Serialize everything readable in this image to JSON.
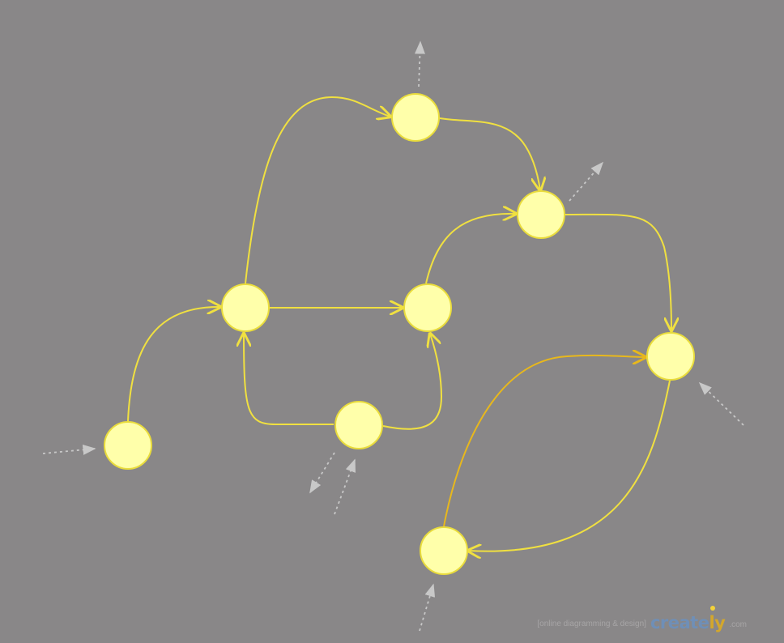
{
  "diagram": {
    "type": "state-transition-graph",
    "node_count": 9,
    "colors": {
      "background": "#898788",
      "node_fill": "#ffffaa",
      "node_stroke": "#e9dc3c",
      "edge": "#f0e040",
      "edge_alt": "#e8b81c",
      "ghost_arrow": "#c8c8c8"
    }
  },
  "watermark": {
    "tagline": "[online diagramming & design]",
    "logo_main": "create",
    "logo_accent": "ly",
    "domain": ".com"
  }
}
